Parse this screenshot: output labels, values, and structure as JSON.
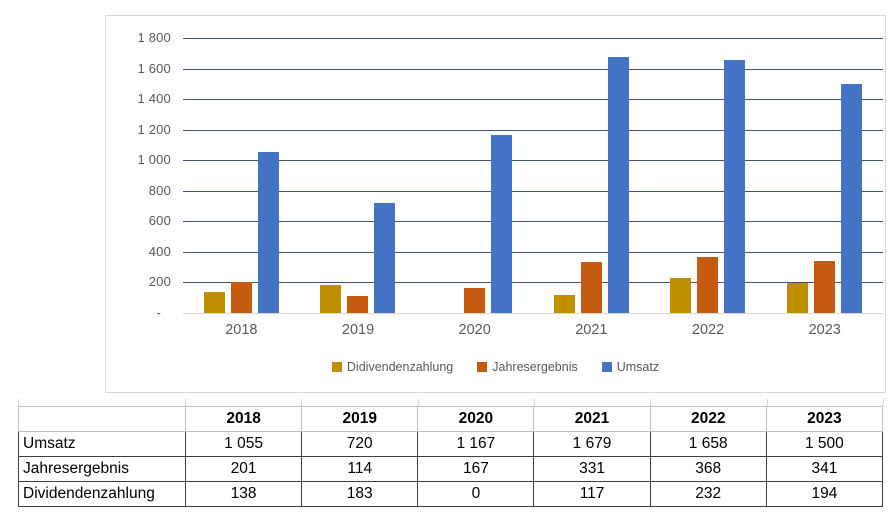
{
  "chart_data": {
    "type": "bar",
    "categories": [
      "2018",
      "2019",
      "2020",
      "2021",
      "2022",
      "2023"
    ],
    "series": [
      {
        "name": "Didivendenzahlung",
        "color": "#BF8F00",
        "values": [
          138,
          183,
          0,
          117,
          232,
          194
        ]
      },
      {
        "name": "Jahresergebnis",
        "color": "#C55A11",
        "values": [
          201,
          114,
          167,
          331,
          368,
          341
        ]
      },
      {
        "name": "Umsatz",
        "color": "#4472C4",
        "values": [
          1055,
          720,
          1167,
          1679,
          1658,
          1500
        ]
      }
    ],
    "title": "",
    "xlabel": "",
    "ylabel": "",
    "ylim": [
      0,
      1800
    ],
    "ytick_step": 200,
    "ytick_labels": [
      "-",
      "200",
      "400",
      "600",
      "800",
      "1 000",
      "1 200",
      "1 400",
      "1 600",
      "1 800"
    ],
    "grid": true,
    "legend_position": "bottom"
  },
  "legend": [
    {
      "label": "Didivendenzahlung",
      "color": "#BF8F00"
    },
    {
      "label": "Jahresergebnis",
      "color": "#C55A11"
    },
    {
      "label": "Umsatz",
      "color": "#4472C4"
    }
  ],
  "table": {
    "columns": [
      "",
      "2018",
      "2019",
      "2020",
      "2021",
      "2022",
      "2023"
    ],
    "rows": [
      {
        "label": "Umsatz",
        "values": [
          "1 055",
          "720",
          "1 167",
          "1 679",
          "1 658",
          "1 500"
        ]
      },
      {
        "label": "Jahresergebnis",
        "values": [
          "201",
          "114",
          "167",
          "331",
          "368",
          "341"
        ]
      },
      {
        "label": "Dividendenzahlung",
        "values": [
          "138",
          "183",
          "0",
          "117",
          "232",
          "194"
        ]
      }
    ]
  },
  "colors": {
    "gridline": "#44546A",
    "zero_line": "#D9D9D9",
    "chart_border": "#D9D9D9",
    "axis_text": "#595959",
    "table_header_border": "#BFBFBF",
    "table_data_border": "#3F3F3F"
  }
}
